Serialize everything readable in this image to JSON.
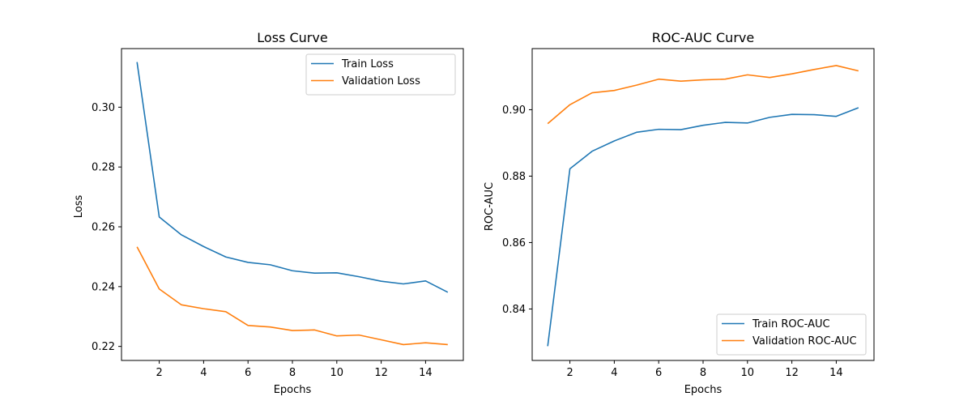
{
  "chart_data": [
    {
      "type": "line",
      "title": "Loss Curve",
      "xlabel": "Epochs",
      "ylabel": "Loss",
      "xlim": [
        0.3,
        15.7
      ],
      "ylim": [
        0.2153,
        0.3196
      ],
      "xticks": [
        2,
        4,
        6,
        8,
        10,
        12,
        14
      ],
      "yticks": [
        0.22,
        0.24,
        0.26,
        0.28,
        0.3
      ],
      "ytick_labels": [
        "0.22",
        "0.24",
        "0.26",
        "0.28",
        "0.30"
      ],
      "grid": false,
      "legend_position": "upper-right",
      "x": [
        1,
        2,
        3,
        4,
        5,
        6,
        7,
        8,
        9,
        10,
        11,
        12,
        13,
        14,
        15
      ],
      "series": [
        {
          "name": "Train Loss",
          "color": "#1f77b4",
          "values": [
            0.3151,
            0.2633,
            0.2573,
            0.2534,
            0.2499,
            0.2481,
            0.2473,
            0.2453,
            0.2445,
            0.2446,
            0.2433,
            0.2418,
            0.2409,
            0.2419,
            0.2381
          ]
        },
        {
          "name": "Validation Loss",
          "color": "#ff7f0e",
          "values": [
            0.2533,
            0.2392,
            0.2339,
            0.2326,
            0.2316,
            0.227,
            0.2265,
            0.2253,
            0.2255,
            0.2235,
            0.2238,
            0.2222,
            0.2206,
            0.2212,
            0.2206
          ]
        }
      ]
    },
    {
      "type": "line",
      "title": "ROC-AUC Curve",
      "xlabel": "Epochs",
      "ylabel": "ROC-AUC",
      "xlim": [
        0.3,
        15.7
      ],
      "ylim": [
        0.8245,
        0.9184
      ],
      "xticks": [
        2,
        4,
        6,
        8,
        10,
        12,
        14
      ],
      "yticks": [
        0.84,
        0.86,
        0.88,
        0.9
      ],
      "ytick_labels": [
        "0.84",
        "0.86",
        "0.88",
        "0.90"
      ],
      "grid": false,
      "legend_position": "lower-right",
      "x": [
        1,
        2,
        3,
        4,
        5,
        6,
        7,
        8,
        9,
        10,
        11,
        12,
        13,
        14,
        15
      ],
      "series": [
        {
          "name": "Train ROC-AUC",
          "color": "#1f77b4",
          "values": [
            0.8288,
            0.8822,
            0.8875,
            0.8906,
            0.8932,
            0.8941,
            0.894,
            0.8953,
            0.8962,
            0.896,
            0.8977,
            0.8986,
            0.8985,
            0.898,
            0.9006
          ]
        },
        {
          "name": "Validation ROC-AUC",
          "color": "#ff7f0e",
          "values": [
            0.8958,
            0.9015,
            0.9051,
            0.9058,
            0.9074,
            0.9092,
            0.9086,
            0.909,
            0.9092,
            0.9105,
            0.9097,
            0.9108,
            0.9121,
            0.9133,
            0.9117
          ]
        }
      ]
    }
  ]
}
